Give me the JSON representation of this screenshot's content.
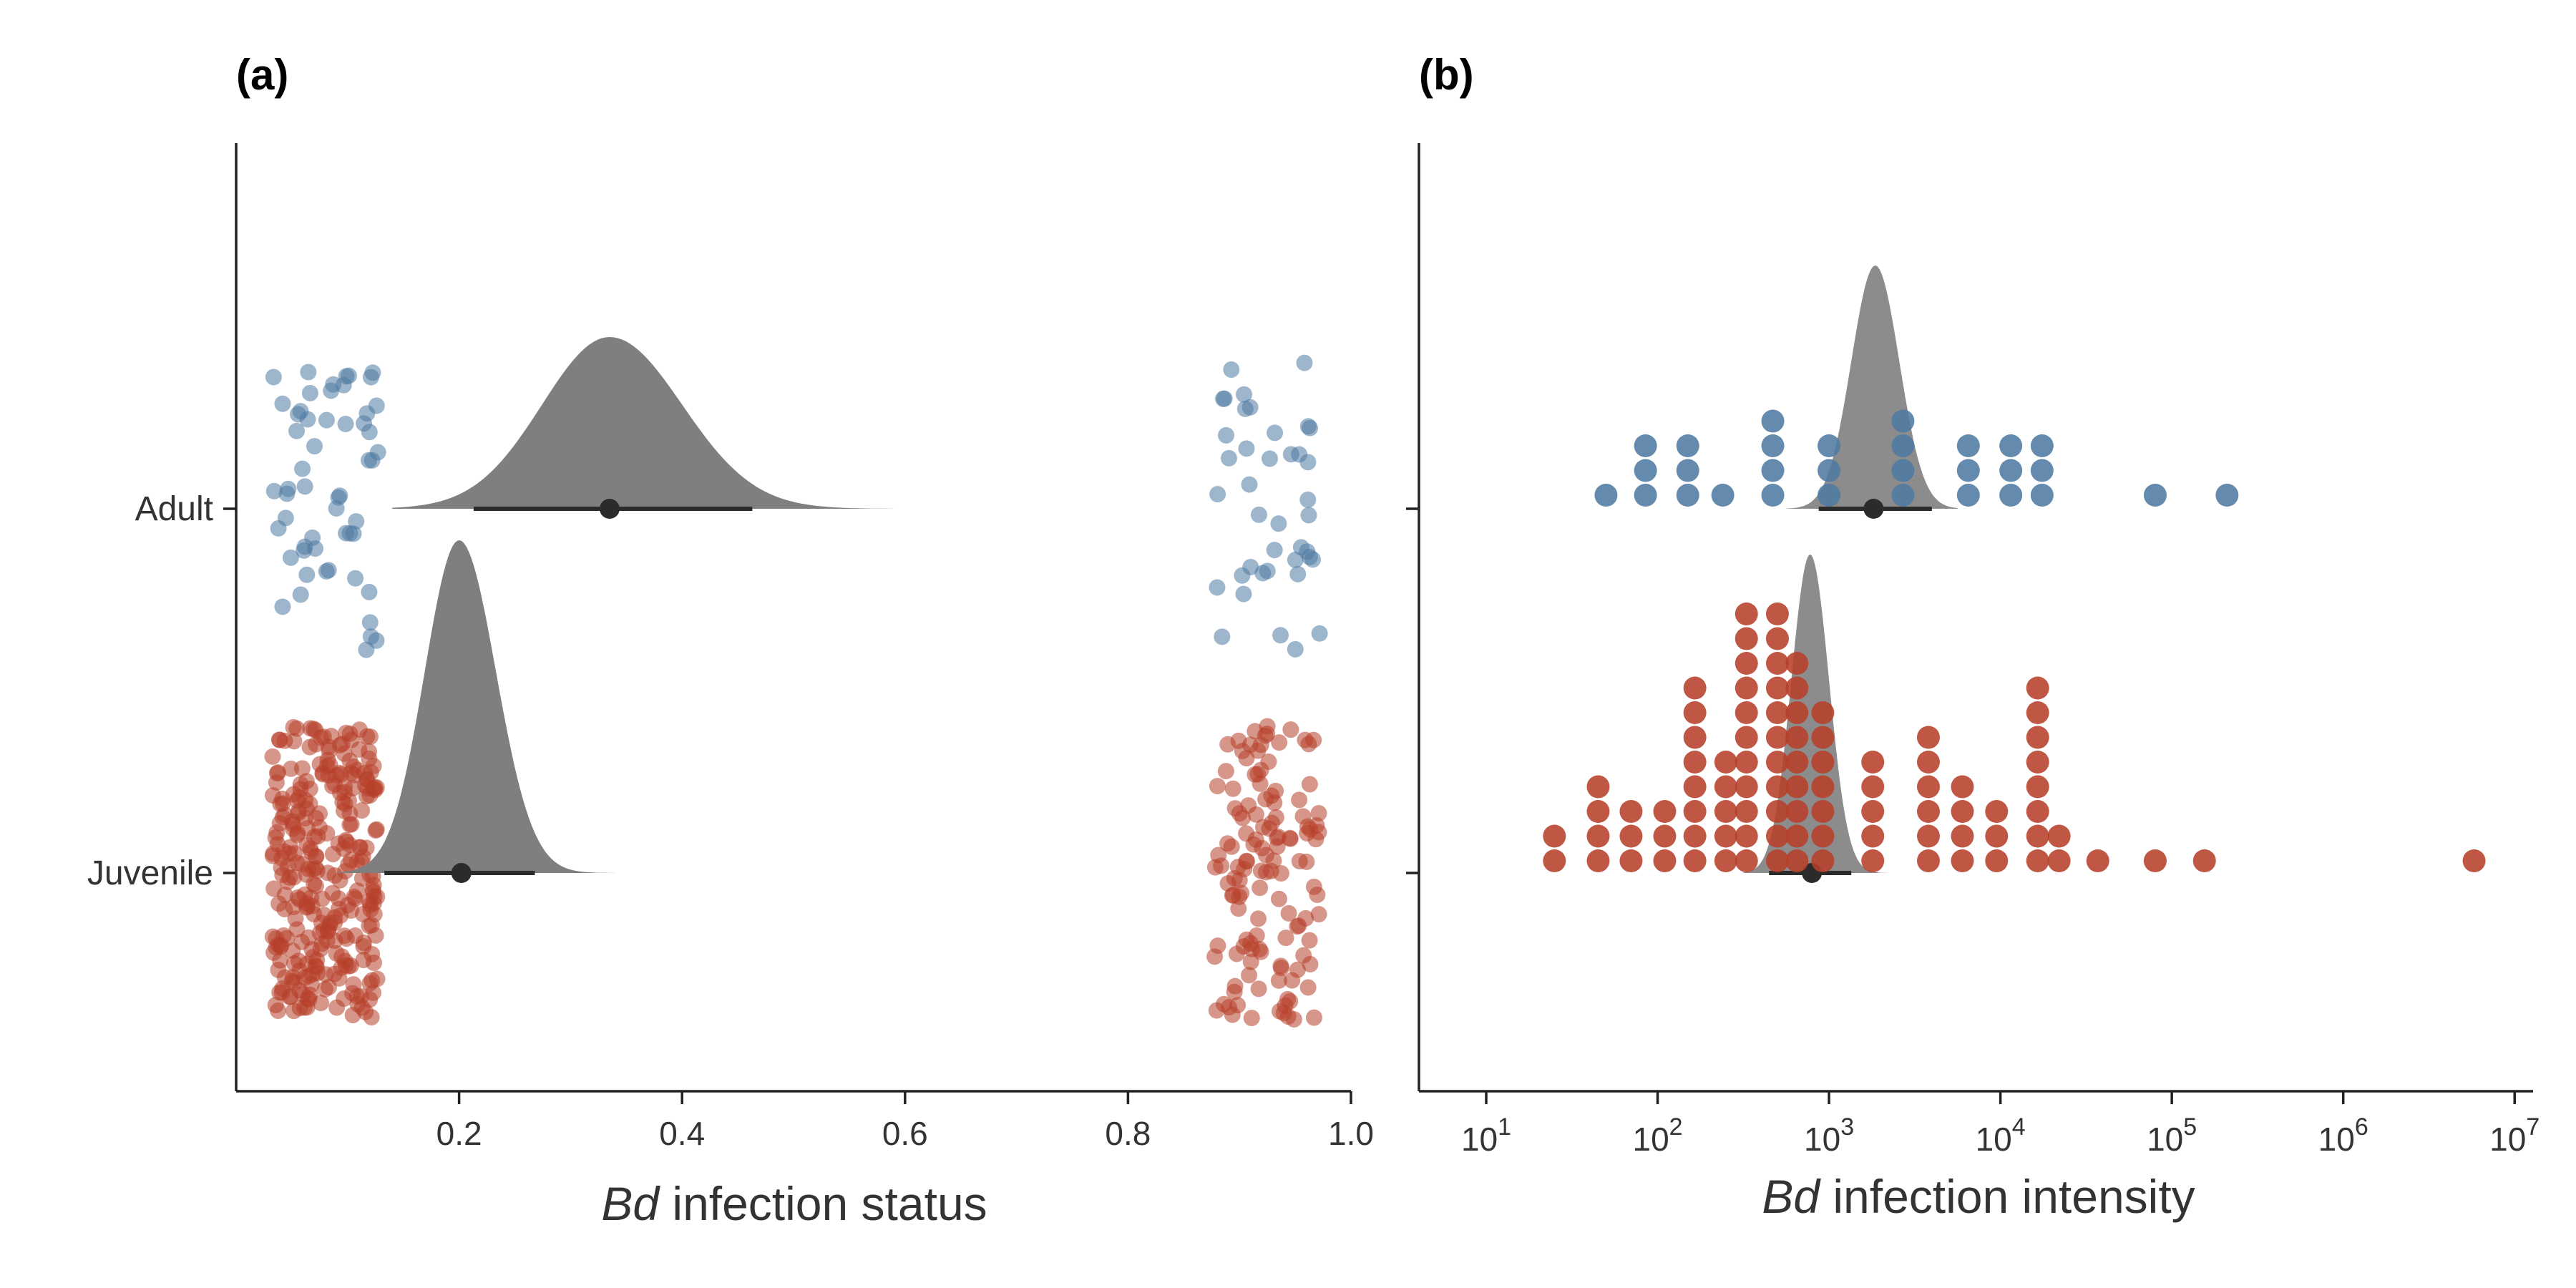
{
  "colors": {
    "adult": "#4e7aa3",
    "juvenile": "#b6402a",
    "posterior": "#7f7f7f",
    "interval": "#2b2b2b",
    "axis": "#222222"
  },
  "chart_data": [
    {
      "panel_label": "(a)",
      "type": "scatter",
      "xlabel_italic": "Bd",
      "xlabel_rest": " infection status",
      "xlim": [
        0.0,
        1.0
      ],
      "xticks": [
        0.2,
        0.4,
        0.6,
        0.8,
        1.0
      ],
      "xtick_labels": [
        "0.2",
        "0.4",
        "0.6",
        "0.8",
        "1.0"
      ],
      "categories": [
        "Adult",
        "Juvenile"
      ],
      "grid": false,
      "raw_points": [
        {
          "category": "Adult",
          "series": "Adult",
          "status_0_count": 55,
          "status_1_count": 40
        },
        {
          "category": "Juvenile",
          "series": "Juvenile",
          "status_0_count": 300,
          "status_1_count": 130
        }
      ],
      "posterior": [
        {
          "category": "Adult",
          "median": 0.335,
          "interval": [
            0.213,
            0.463
          ],
          "density_range": [
            0.14,
            0.59
          ],
          "mode": 0.335,
          "sd": 0.065
        },
        {
          "category": "Juvenile",
          "median": 0.202,
          "interval": [
            0.133,
            0.268
          ],
          "density_range": [
            0.09,
            0.34
          ],
          "mode": 0.2,
          "sd": 0.033
        }
      ]
    },
    {
      "panel_label": "(b)",
      "type": "scatter",
      "xlabel_italic": "Bd",
      "xlabel_rest": " infection intensity",
      "x_scale": "log10",
      "xlim": [
        1.0,
        7.5
      ],
      "xticks": [
        1,
        2,
        3,
        4,
        5,
        6,
        7
      ],
      "xtick_base": "10",
      "xtick_exponents": [
        "1",
        "2",
        "3",
        "4",
        "5",
        "6",
        "7"
      ],
      "categories": [
        "Adult",
        "Juvenile"
      ],
      "grid": false,
      "dot_stacks": [
        {
          "series": "Adult",
          "x": [
            50,
            85,
            85,
            85,
            150,
            150,
            150,
            240,
            470,
            470,
            470,
            470,
            1000,
            1000,
            1000,
            2700,
            2700,
            2700,
            2700,
            6500,
            6500,
            6500,
            11500,
            11500,
            11500,
            17500,
            17500,
            17500,
            80000,
            210000
          ]
        },
        {
          "series": "Juvenile",
          "x": [
            25,
            25,
            45,
            45,
            45,
            45,
            70,
            70,
            70,
            110,
            110,
            110,
            165,
            165,
            165,
            165,
            165,
            165,
            165,
            165,
            250,
            250,
            250,
            250,
            250,
            330,
            330,
            330,
            330,
            330,
            330,
            330,
            330,
            330,
            330,
            330,
            500,
            500,
            500,
            500,
            500,
            500,
            500,
            500,
            500,
            500,
            500,
            650,
            650,
            650,
            650,
            650,
            650,
            650,
            650,
            650,
            920,
            920,
            920,
            920,
            920,
            920,
            920,
            1800,
            1800,
            1800,
            1800,
            1800,
            3800,
            3800,
            3800,
            3800,
            3800,
            3800,
            6000,
            6000,
            6000,
            6000,
            9500,
            9500,
            9500,
            16500,
            16500,
            16500,
            16500,
            16500,
            16500,
            16500,
            16500,
            22000,
            22000,
            37000,
            80000,
            155000,
            5800000
          ]
        }
      ],
      "posterior": [
        {
          "category": "Adult",
          "median_log10": 3.26,
          "interval_log10": [
            2.94,
            3.6
          ],
          "density_range_log10": [
            2.75,
            3.75
          ],
          "mode_log10": 3.27,
          "sd_log10": 0.14
        },
        {
          "category": "Juvenile",
          "median_log10": 2.9,
          "interval_log10": [
            2.65,
            3.13
          ],
          "density_range_log10": [
            2.5,
            3.35
          ],
          "mode_log10": 2.89,
          "sd_log10": 0.11
        }
      ]
    }
  ]
}
